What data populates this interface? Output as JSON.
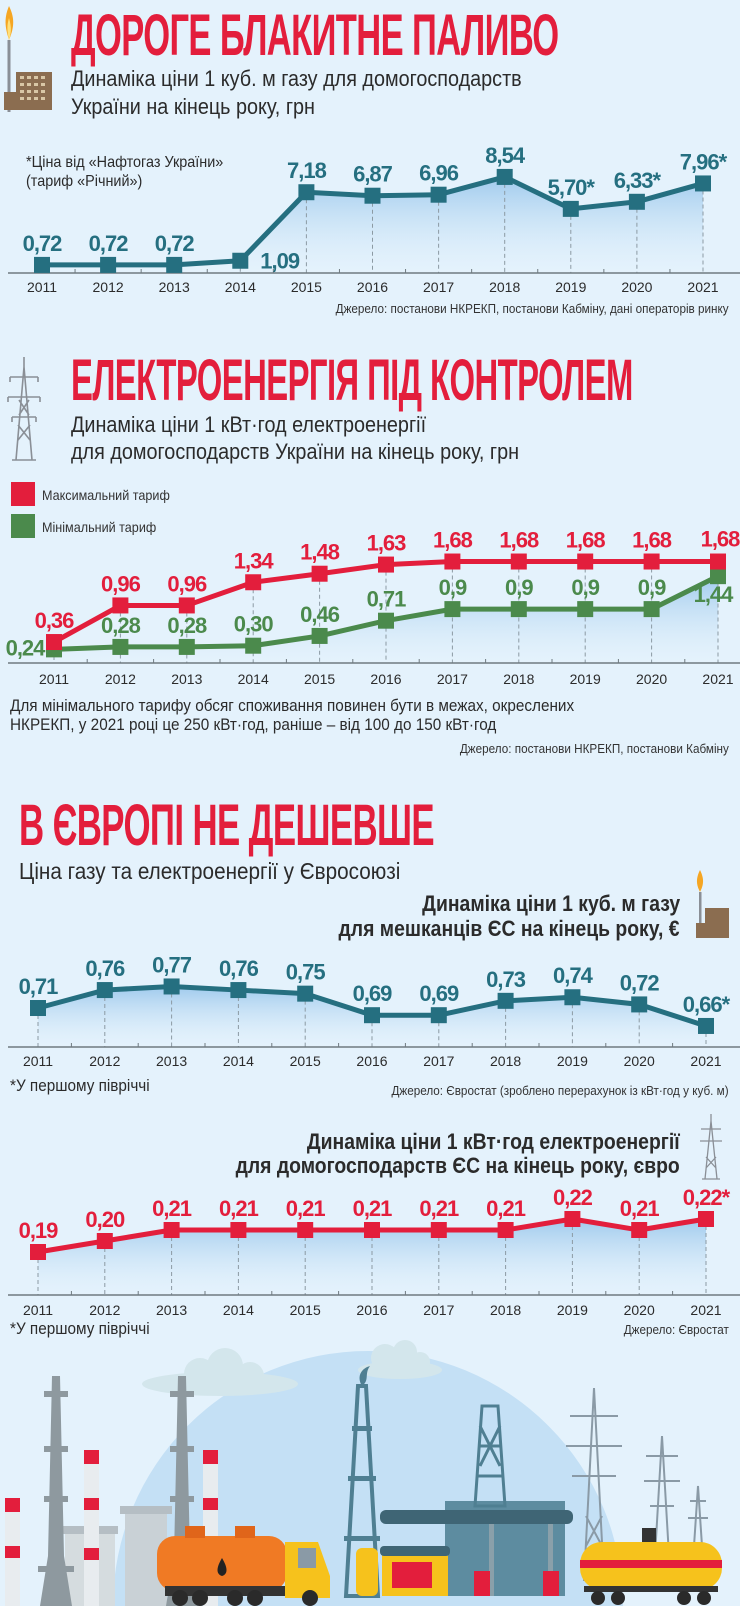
{
  "gas_ua": {
    "title": "ДОРОГЕ БЛАКИТНЕ ПАЛИВО",
    "subtitle_lines": [
      "Динаміка ціни 1 куб. м газу для домогосподарств",
      "України на кінець року, грн"
    ],
    "note_lines": [
      "*Ціна від «Нафтогаз України»",
      "(тариф «Річний»)"
    ],
    "source": "Джерело: постанови НКРЕКП, постанови Кабміну, дані операторів ринку",
    "icon": "gas-factory-icon"
  },
  "power_ua": {
    "title": "ЕЛЕКТРОЕНЕРГІЯ ПІД КОНТРОЛЕМ",
    "subtitle_lines": [
      "Динаміка ціни 1 кВт·год електроенергії",
      "для домогосподарств України на кінець року, грн"
    ],
    "legend": [
      {
        "label": "Максимальний тариф",
        "color": "#e31e3c"
      },
      {
        "label": "Мінімальний тариф",
        "color": "#4b8a4c"
      }
    ],
    "note_lines": [
      "Для мінімального тарифу обсяг споживання повинен бути в межах, окреслених",
      "НКРЕКП, у 2021 році це 250 кВт·год, раніше – від 100 до 150 кВт·год"
    ],
    "source": "Джерело: постанови НКРЕКП, постанови Кабміну",
    "icon": "power-tower-icon"
  },
  "europe": {
    "title": "В ЄВРОПІ НЕ ДЕШЕВШЕ",
    "subtitle": "Ціна газу та електроенергії у Євросоюзі",
    "gas": {
      "title_lines": [
        "Динаміка ціни 1 куб. м газу",
        "для мешканців ЄС на кінець року, €"
      ],
      "footnote": "*У першому півріччі",
      "source": "Джерело: Євростат (зроблено перерахунок із кВт·год у куб. м)"
    },
    "power": {
      "title_lines": [
        "Динаміка ціни 1 кВт·год електроенергії",
        "для домогосподарств ЄС на кінець року, євро"
      ],
      "footnote": "*У першому півріччі",
      "source": "Джерело: Євростат"
    }
  },
  "colors": {
    "accent": "#e31e3c",
    "teal": "#256f80",
    "green": "#4b8a4c",
    "background": "#e4f2fc"
  },
  "chart_data": [
    {
      "type": "line",
      "categories": [
        "2011",
        "2012",
        "2013",
        "2014",
        "2015",
        "2016",
        "2017",
        "2018",
        "2019",
        "2020",
        "2021"
      ],
      "ylim": [
        0,
        9
      ],
      "grid": false,
      "series": [
        {
          "values": [
            0.72,
            0.72,
            0.72,
            1.09,
            7.18,
            6.87,
            6.96,
            8.54,
            5.7,
            6.33,
            7.96
          ],
          "labels": [
            "0,72",
            "0,72",
            "0,72",
            "1,09",
            "7,18",
            "6,87",
            "6,96",
            "8,54",
            "5,70*",
            "6,33*",
            "7,96*"
          ],
          "color": "#256f80"
        }
      ]
    },
    {
      "type": "line",
      "categories": [
        "2011",
        "2012",
        "2013",
        "2014",
        "2015",
        "2016",
        "2017",
        "2018",
        "2019",
        "2020",
        "2021"
      ],
      "ylim": [
        0,
        1.8
      ],
      "grid": false,
      "legend": "top-left",
      "series": [
        {
          "name": "Максимальний тариф",
          "values": [
            0.36,
            0.96,
            0.96,
            1.34,
            1.48,
            1.63,
            1.68,
            1.68,
            1.68,
            1.68,
            1.68
          ],
          "labels": [
            "0,36",
            "0,96",
            "0,96",
            "1,34",
            "1,48",
            "1,63",
            "1,68",
            "1,68",
            "1,68",
            "1,68",
            "1,68"
          ],
          "color": "#e31e3c"
        },
        {
          "name": "Мінімальний тариф",
          "values": [
            0.24,
            0.28,
            0.28,
            0.3,
            0.46,
            0.71,
            0.9,
            0.9,
            0.9,
            0.9,
            1.44
          ],
          "labels": [
            "0,24",
            "0,28",
            "0,28",
            "0,30",
            "0,46",
            "0,71",
            "0,9",
            "0,9",
            "0,9",
            "0,9",
            "1,44"
          ],
          "color": "#4b8a4c"
        }
      ]
    },
    {
      "type": "line",
      "categories": [
        "2011",
        "2012",
        "2013",
        "2014",
        "2015",
        "2016",
        "2017",
        "2018",
        "2019",
        "2020",
        "2021"
      ],
      "ylim": [
        0.6,
        0.8
      ],
      "grid": false,
      "series": [
        {
          "values": [
            0.71,
            0.76,
            0.77,
            0.76,
            0.75,
            0.69,
            0.69,
            0.73,
            0.74,
            0.72,
            0.66
          ],
          "labels": [
            "0,71",
            "0,76",
            "0,77",
            "0,76",
            "0,75",
            "0,69",
            "0,69",
            "0,73",
            "0,74",
            "0,72",
            "0,66*"
          ],
          "color": "#256f80"
        }
      ]
    },
    {
      "type": "line",
      "categories": [
        "2011",
        "2012",
        "2013",
        "2014",
        "2015",
        "2016",
        "2017",
        "2018",
        "2019",
        "2020",
        "2021"
      ],
      "ylim": [
        0.15,
        0.23
      ],
      "grid": false,
      "series": [
        {
          "values": [
            0.19,
            0.2,
            0.21,
            0.21,
            0.21,
            0.21,
            0.21,
            0.21,
            0.22,
            0.21,
            0.22
          ],
          "labels": [
            "0,19",
            "0,20",
            "0,21",
            "0,21",
            "0,21",
            "0,21",
            "0,21",
            "0,21",
            "0,22",
            "0,21",
            "0,22*"
          ],
          "color": "#e31e3c"
        }
      ]
    }
  ]
}
